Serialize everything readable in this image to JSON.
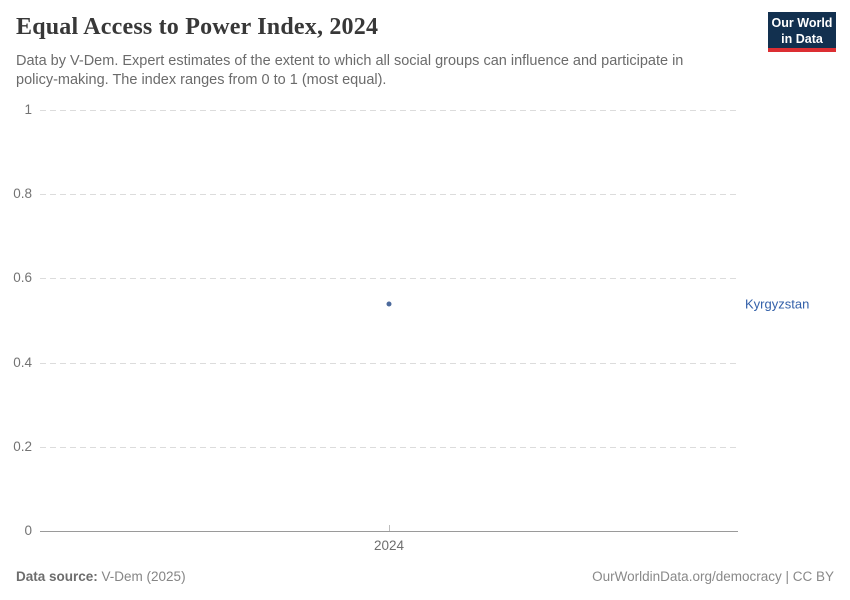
{
  "header": {
    "title": "Equal Access to Power Index, 2024",
    "subtitle": "Data by V-Dem. Expert estimates of the extent to which all social groups can influence and participate in policy-making. The index ranges from 0 to 1 (most equal).",
    "logo": {
      "line1": "Our World",
      "line2": "in Data"
    }
  },
  "chart_data": {
    "type": "scatter",
    "title": "Equal Access to Power Index, 2024",
    "x": [
      2024
    ],
    "series": [
      {
        "name": "Kyrgyzstan",
        "values": [
          0.54
        ]
      }
    ],
    "xlabel": "",
    "ylabel": "",
    "ylim": [
      0,
      1
    ],
    "yticks": [
      0,
      0.2,
      0.4,
      0.6,
      0.8,
      1
    ],
    "ytick_labels": [
      "0",
      "0.2",
      "0.4",
      "0.6",
      "0.8",
      "1"
    ],
    "xtick_labels": [
      "2024"
    ],
    "grid": "horizontal-dashed",
    "legend_position": "entity-label-right",
    "entity_label": "Kyrgyzstan",
    "point_color": "#4c6a9c",
    "entity_label_color": "#3360a9"
  },
  "footer": {
    "source_label": "Data source:",
    "source_value": " V-Dem (2025)",
    "attribution": "OurWorldinData.org/democracy | CC BY"
  },
  "colors": {
    "logo_background": "#12304f",
    "logo_accent": "#dc2e32",
    "gridline": "#dcdcdc",
    "axis_line": "#9a9a9a",
    "title_text": "#383838",
    "subtitle_text": "#6b6b6b",
    "tick_text": "#737373",
    "footer_text": "#858585"
  }
}
